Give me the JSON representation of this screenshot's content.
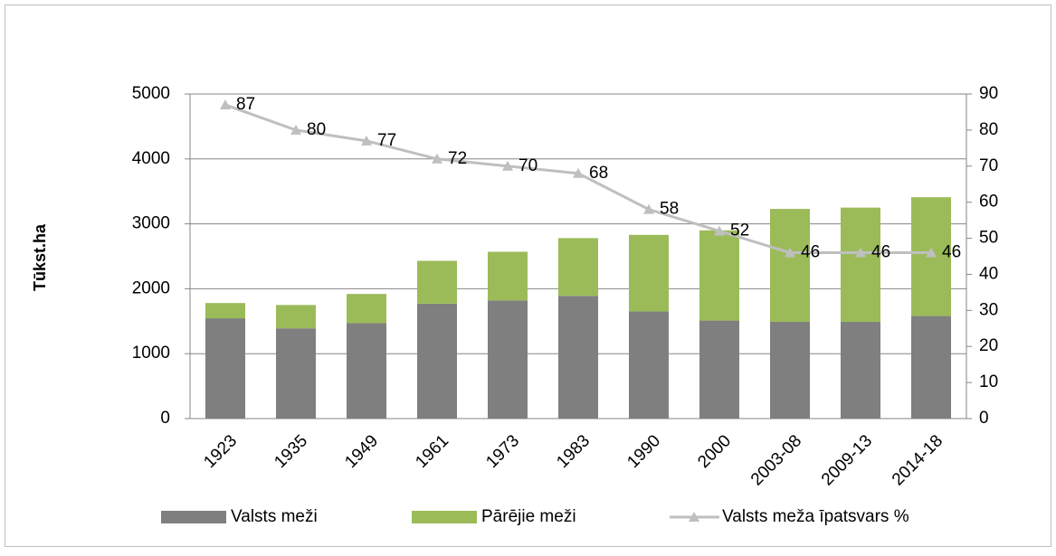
{
  "chart_data": {
    "type": "bar",
    "y_label": "Tūkst.ha",
    "categories": [
      "1923",
      "1935",
      "1949",
      "1961",
      "1973",
      "1983",
      "1990",
      "2000",
      "2003-08",
      "2009-13",
      "2014-18"
    ],
    "series": [
      {
        "name": "Valsts meži",
        "color": "#7f7f7f",
        "values": [
          1545,
          1390,
          1470,
          1770,
          1820,
          1890,
          1650,
          1510,
          1490,
          1490,
          1580
        ]
      },
      {
        "name": "Pārējie meži",
        "color": "#9bbb59",
        "values": [
          235,
          360,
          450,
          660,
          750,
          890,
          1180,
          1390,
          1740,
          1760,
          1830
        ]
      },
      {
        "name": "Valsts meža īpatsvars  %",
        "color": "#bfbfbf",
        "type": "line",
        "axis": "y2",
        "values": [
          87,
          80,
          77,
          72,
          70,
          68,
          58,
          52,
          46,
          46,
          46
        ]
      }
    ],
    "stacked": true,
    "ylim": [
      0,
      5000
    ],
    "yticks": [
      0,
      1000,
      2000,
      3000,
      4000,
      5000
    ],
    "y2lim": [
      0,
      90
    ],
    "y2ticks": [
      0,
      10,
      20,
      30,
      40,
      50,
      60,
      70,
      80,
      90
    ],
    "grid": true,
    "legend": "bottom"
  }
}
